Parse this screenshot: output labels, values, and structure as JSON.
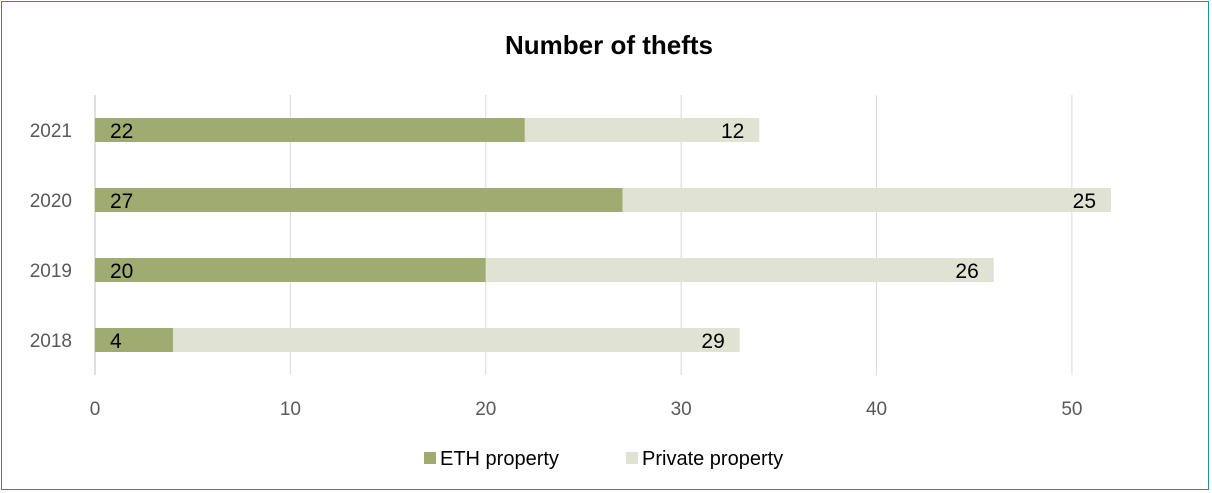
{
  "chart_data": {
    "type": "bar",
    "orientation": "horizontal",
    "stacked": true,
    "title": "Number of thefts",
    "categories": [
      "2021",
      "2020",
      "2019",
      "2018"
    ],
    "series": [
      {
        "name": "ETH property",
        "values": [
          22,
          27,
          20,
          4
        ],
        "color": "#a0ab72"
      },
      {
        "name": "Private property",
        "values": [
          12,
          25,
          26,
          29
        ],
        "color": "#e0e3d3"
      }
    ],
    "xticks": [
      "0",
      "10",
      "20",
      "30",
      "40",
      "50"
    ],
    "xlim": [
      0,
      52
    ],
    "grid": true,
    "legend": "bottom",
    "xlabel": "",
    "ylabel": ""
  },
  "colors": {
    "border": "#1f8fa6",
    "grid": "#d9d9d9",
    "axis": "#bfbfbf"
  }
}
